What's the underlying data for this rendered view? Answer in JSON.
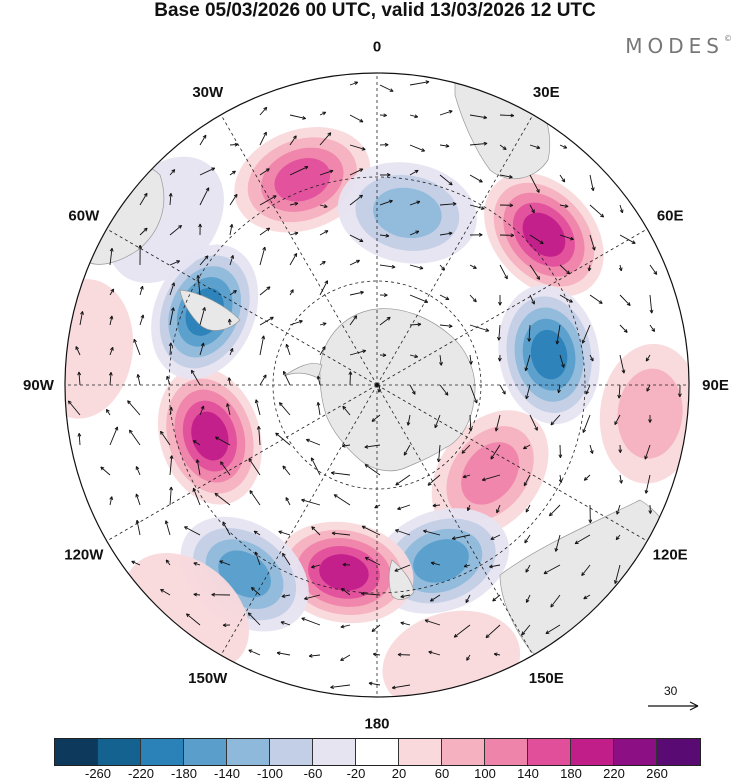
{
  "title": "Base 05/03/2026 00 UTC, valid 13/03/2026 12 UTC",
  "brand": "MODES",
  "brand_mark": "©",
  "longitude_labels": [
    {
      "text": "0",
      "lon": 0
    },
    {
      "text": "30E",
      "lon": 30
    },
    {
      "text": "60E",
      "lon": 60
    },
    {
      "text": "90E",
      "lon": 90
    },
    {
      "text": "120E",
      "lon": 120
    },
    {
      "text": "150E",
      "lon": 150
    },
    {
      "text": "180",
      "lon": 180
    },
    {
      "text": "150W",
      "lon": 210
    },
    {
      "text": "120W",
      "lon": 240
    },
    {
      "text": "90W",
      "lon": 270
    },
    {
      "text": "60W",
      "lon": 300
    },
    {
      "text": "30W",
      "lon": 330
    }
  ],
  "reference_vector": "30",
  "colorbar": {
    "colors": [
      "#0d3a5c",
      "#14628f",
      "#2a82b8",
      "#5a9fcb",
      "#8fb9db",
      "#c3cfe6",
      "#e6e4f1",
      "#ffffff",
      "#f9d9dc",
      "#f5b1bf",
      "#ef84aa",
      "#e14f9b",
      "#c21e8a",
      "#8c0f83",
      "#5a0a73"
    ],
    "tick_labels": [
      "-260",
      "-220",
      "-180",
      "-140",
      "-100",
      "-60",
      "-20",
      "20",
      "60",
      "100",
      "140",
      "180",
      "220",
      "260"
    ]
  },
  "anomaly_centers": [
    {
      "lon": 340,
      "dist": 0.7,
      "value": 180
    },
    {
      "lon": 10,
      "dist": 0.56,
      "value": -140
    },
    {
      "lon": 48,
      "dist": 0.72,
      "value": 200
    },
    {
      "lon": 80,
      "dist": 0.56,
      "value": -220
    },
    {
      "lon": 96,
      "dist": 0.88,
      "value": 100
    },
    {
      "lon": 128,
      "dist": 0.46,
      "value": 140
    },
    {
      "lon": 160,
      "dist": 0.6,
      "value": -180
    },
    {
      "lon": 190,
      "dist": 0.61,
      "value": 200
    },
    {
      "lon": 215,
      "dist": 0.74,
      "value": -160
    },
    {
      "lon": 253,
      "dist": 0.56,
      "value": 200
    },
    {
      "lon": 293,
      "dist": 0.6,
      "value": -200
    },
    {
      "lon": 308,
      "dist": 0.86,
      "value": -60
    },
    {
      "lon": 277,
      "dist": 0.95,
      "value": 60
    },
    {
      "lon": 165,
      "dist": 0.92,
      "value": 60
    },
    {
      "lon": 220,
      "dist": 0.95,
      "value": 40
    }
  ]
}
